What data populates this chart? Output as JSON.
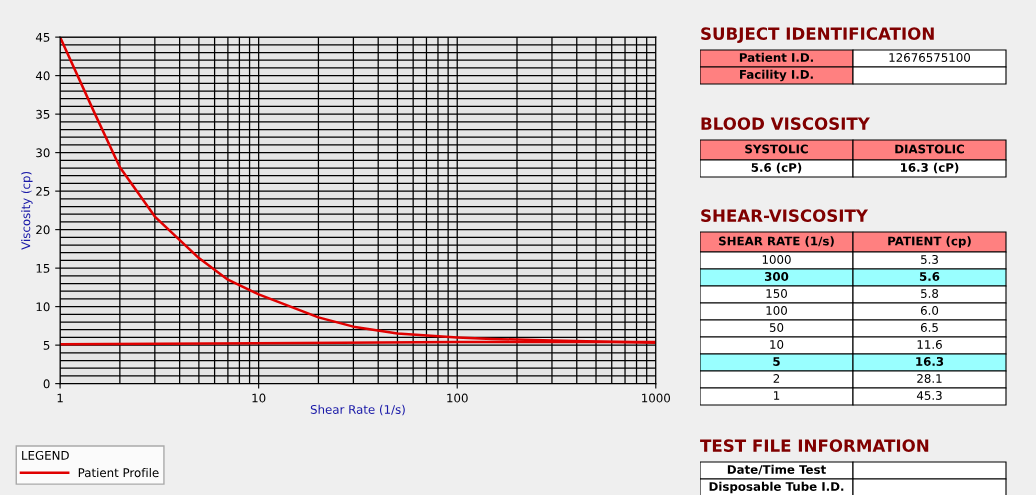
{
  "chart_data": [
    {
      "type": "line",
      "xlabel": "Shear Rate (1/s)",
      "ylabel": "Viscosity (cp)",
      "log": "x",
      "xlim": [
        1,
        1000
      ],
      "xticks": [
        1,
        10,
        100,
        1000
      ],
      "ylim": [
        0,
        45
      ],
      "yticks": [
        0,
        5,
        10,
        15,
        20,
        25,
        30,
        35,
        40,
        45
      ],
      "grid": true,
      "legend": "bottom left",
      "legend_title": "LEGEND",
      "series": [
        {
          "name": "Patient Profile",
          "color": "#e00000",
          "x": [
            1,
            1.5,
            2,
            3,
            5,
            7,
            10,
            20,
            30,
            50,
            100,
            150,
            300,
            1000
          ],
          "values": [
            45,
            35,
            28.1,
            21.7,
            16.3,
            13.5,
            11.6,
            8.6,
            7.4,
            6.5,
            6.0,
            5.8,
            5.6,
            5.3
          ]
        },
        {
          "color": "#e00000",
          "x": [
            1,
            26,
            100,
            1000
          ],
          "values": [
            5.1,
            5.3,
            5.4,
            5.4
          ]
        }
      ]
    },
    {
      "type": "other",
      "title": "SUBJECT IDENTIFICATION",
      "color": "#ff8080",
      "y_categories": [
        "Patient I.D.",
        "Facility I.D."
      ],
      "cell_labels": [
        [
          "12676575100"
        ],
        [
          null
        ]
      ]
    },
    {
      "type": "other",
      "title": "BLOOD VISCOSITY",
      "color": "#ff8080",
      "categories": [
        "SYSTOLIC",
        "DIASTOLIC"
      ],
      "cell_labels": [
        [
          "5.6 (cP)",
          "16.3 (cP)"
        ]
      ]
    },
    {
      "type": "other",
      "title": "SHEAR-VISCOSITY",
      "categories": [
        "SHEAR RATE (1/s)",
        "PATIENT (cp)"
      ],
      "cell_labels": [
        [
          "1000",
          "5.3"
        ],
        [
          "300",
          "5.6"
        ],
        [
          "150",
          "5.8"
        ],
        [
          "100",
          "6.0"
        ],
        [
          "50",
          "6.5"
        ],
        [
          "10",
          "11.6"
        ],
        [
          "5",
          "16.3"
        ],
        [
          "2",
          "28.1"
        ],
        [
          "1",
          "45.3"
        ]
      ],
      "colors": [
        "#ff8080",
        "#ff8080",
        "#ffffff",
        "#ffffff",
        "#99ffff",
        "#99ffff",
        "#ffffff",
        "#ffffff",
        "#ffffff",
        "#ffffff",
        "#ffffff",
        "#ffffff",
        "#ffffff",
        "#ffffff",
        "#99ffff",
        "#99ffff",
        "#ffffff",
        "#ffffff",
        "#ffffff",
        "#ffffff"
      ]
    },
    {
      "type": "other",
      "title": "TEST FILE INFORMATION",
      "y_categories": [
        "Date/Time Test",
        "Disposable Tube I.D."
      ],
      "cell_labels": [
        [
          null
        ],
        [
          null
        ]
      ]
    }
  ]
}
